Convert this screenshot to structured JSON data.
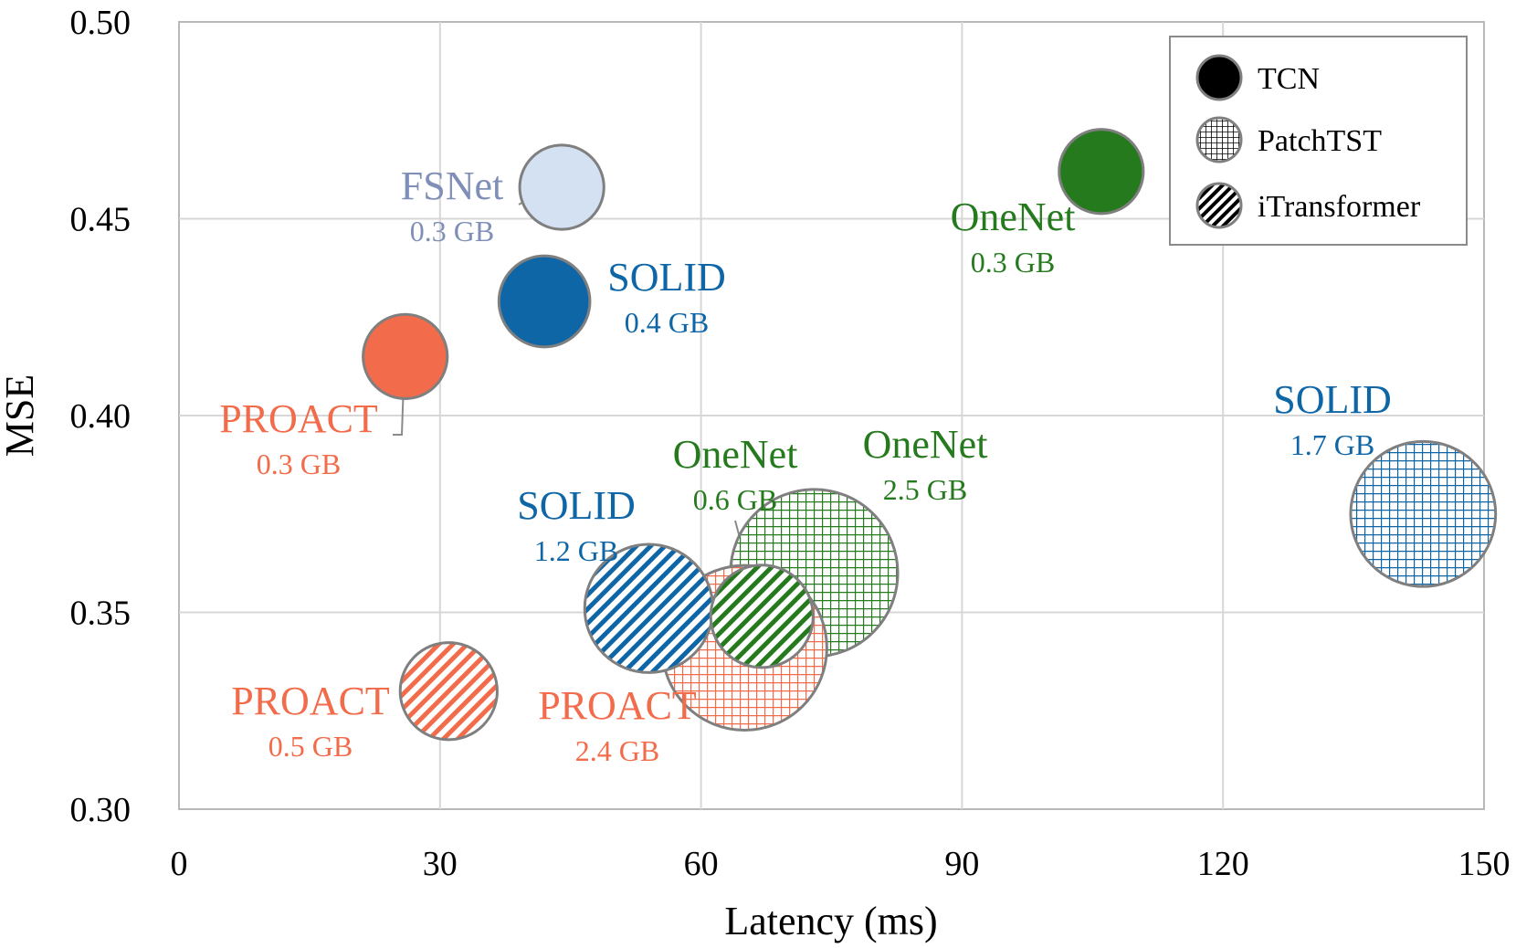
{
  "chart_data": {
    "type": "scatter",
    "title": "",
    "xlabel": "Latency (ms)",
    "ylabel": "MSE",
    "xlim": [
      0,
      150
    ],
    "ylim": [
      0.3,
      0.5
    ],
    "x_ticks": [
      0,
      30,
      60,
      90,
      120,
      150
    ],
    "y_ticks": [
      0.3,
      0.35,
      0.4,
      0.45,
      0.5
    ],
    "x_tick_labels": [
      "0",
      "30",
      "60",
      "90",
      "120",
      "150"
    ],
    "y_tick_labels": [
      "0.30",
      "0.35",
      "0.40",
      "0.45",
      "0.50"
    ],
    "grid": true,
    "bubble_size": "memory (GB)",
    "legend_position": "top-right",
    "legend": [
      {
        "label": "TCN",
        "pattern": "solid"
      },
      {
        "label": "PatchTST",
        "pattern": "grid"
      },
      {
        "label": "iTransformer",
        "pattern": "diagonal"
      }
    ],
    "colors": {
      "PROACT": "#f26b4a",
      "SOLID": "#0f66a6",
      "OneNet": "#267a1e",
      "FSNet": "#7f8fb8",
      "FSNet_fill": "#d4e1f3"
    },
    "points": [
      {
        "method": "FSNet",
        "backbone": "TCN",
        "latency_ms": 44,
        "mse": 0.458,
        "memory": "0.3 GB",
        "color": "#d4e1f3",
        "label_color": "#7f8fb8"
      },
      {
        "method": "SOLID",
        "backbone": "TCN",
        "latency_ms": 42,
        "mse": 0.429,
        "memory": "0.4 GB",
        "color": "#0f66a6",
        "label_color": "#0f66a6"
      },
      {
        "method": "PROACT",
        "backbone": "TCN",
        "latency_ms": 26,
        "mse": 0.415,
        "memory": "0.3 GB",
        "color": "#f26b4a",
        "label_color": "#f26b4a"
      },
      {
        "method": "OneNet",
        "backbone": "TCN",
        "latency_ms": 106,
        "mse": 0.462,
        "memory": "0.3 GB",
        "color": "#267a1e",
        "label_color": "#267a1e"
      },
      {
        "method": "SOLID",
        "backbone": "PatchTST",
        "latency_ms": 143,
        "mse": 0.375,
        "memory": "1.7 GB",
        "color": "#0f66a6",
        "label_color": "#0f66a6"
      },
      {
        "method": "OneNet",
        "backbone": "PatchTST",
        "latency_ms": 73,
        "mse": 0.36,
        "memory": "2.5 GB",
        "color": "#267a1e",
        "label_color": "#267a1e"
      },
      {
        "method": "PROACT",
        "backbone": "PatchTST",
        "latency_ms": 65,
        "mse": 0.341,
        "memory": "2.4 GB",
        "color": "#f26b4a",
        "label_color": "#f26b4a"
      },
      {
        "method": "SOLID",
        "backbone": "iTransformer",
        "latency_ms": 54,
        "mse": 0.351,
        "memory": "1.2 GB",
        "color": "#0f66a6",
        "label_color": "#0f66a6"
      },
      {
        "method": "OneNet",
        "backbone": "iTransformer",
        "latency_ms": 67,
        "mse": 0.349,
        "memory": "0.6 GB",
        "color": "#267a1e",
        "label_color": "#267a1e"
      },
      {
        "method": "PROACT",
        "backbone": "iTransformer",
        "latency_ms": 31,
        "mse": 0.33,
        "memory": "0.5 GB",
        "color": "#f26b4a",
        "label_color": "#f26b4a"
      }
    ]
  }
}
